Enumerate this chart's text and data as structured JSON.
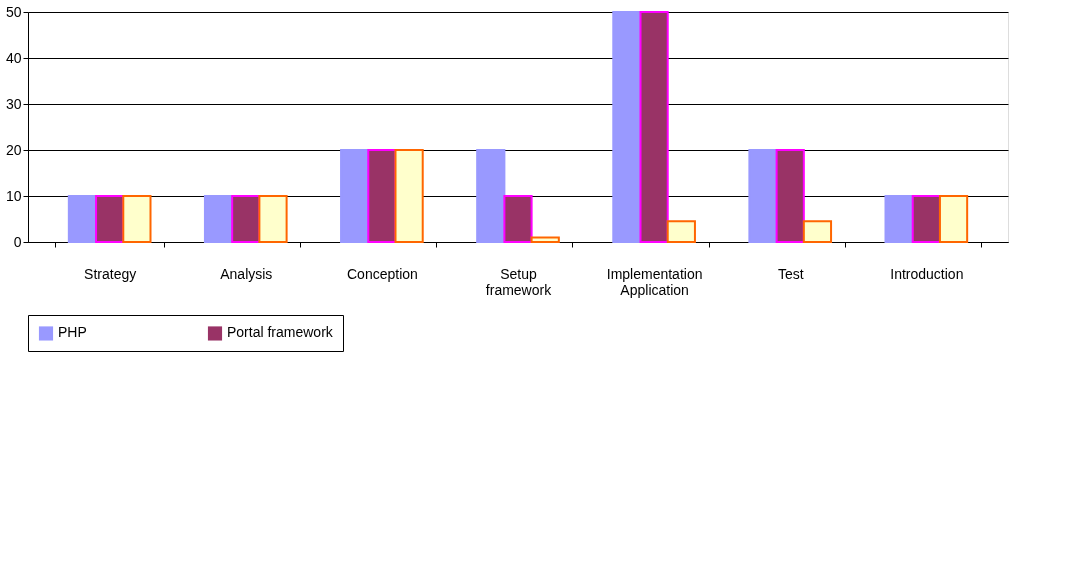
{
  "chart_data": {
    "type": "bar",
    "categories": [
      "Strategy",
      "Analysis",
      "Conception",
      "Setup framework",
      "Implementation Application",
      "Test",
      "Introduction"
    ],
    "series": [
      {
        "name": "PHP",
        "color": "#9999ff",
        "values": [
          10,
          10,
          20,
          20,
          50,
          20,
          10
        ]
      },
      {
        "name": "Portal framework",
        "color": "#993366",
        "values": [
          10,
          10,
          20,
          10,
          50,
          20,
          10
        ]
      },
      {
        "color": "#ffffcc",
        "values": [
          10,
          10,
          20,
          1,
          4.5,
          4.5,
          10
        ]
      }
    ],
    "ylim": [
      0,
      50
    ],
    "yticks": [
      0,
      10,
      20,
      30,
      40,
      50
    ],
    "grid": "y",
    "legend": "bottom"
  }
}
